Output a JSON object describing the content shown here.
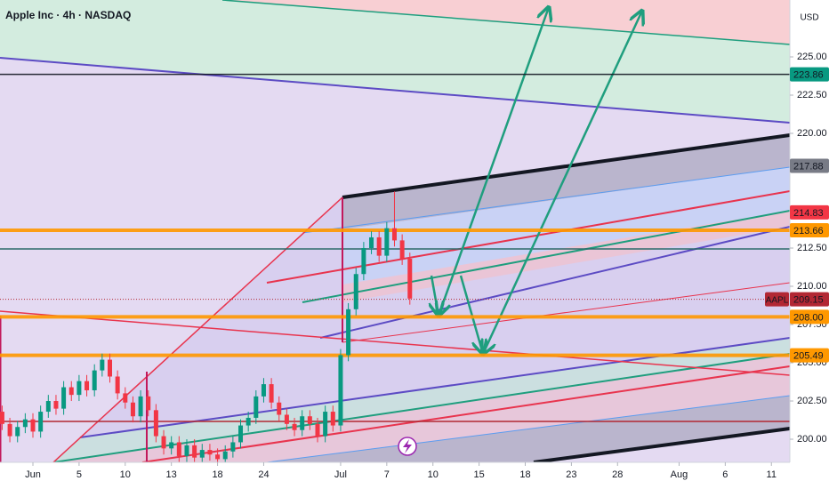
{
  "chart_data": {
    "type": "candlestick",
    "title": "Apple Inc · 4h · NASDAQ",
    "currency": "USD",
    "symbol_tag": "AAPL",
    "up_color": "#089981",
    "down_color": "#f23645",
    "xlim": [
      -2.14,
      49.2
    ],
    "ylim": [
      198.49,
      228.72
    ],
    "xticks": [
      {
        "value": 0,
        "label": "Jun"
      },
      {
        "value": 3,
        "label": "5"
      },
      {
        "value": 6,
        "label": "10"
      },
      {
        "value": 9,
        "label": "13"
      },
      {
        "value": 12,
        "label": "18"
      },
      {
        "value": 15,
        "label": "24"
      },
      {
        "value": 20,
        "label": "Jul"
      },
      {
        "value": 23,
        "label": "7"
      },
      {
        "value": 26,
        "label": "10"
      },
      {
        "value": 29,
        "label": "15"
      },
      {
        "value": 32,
        "label": "18"
      },
      {
        "value": 35,
        "label": "23"
      },
      {
        "value": 38,
        "label": "28"
      },
      {
        "value": 42,
        "label": "Aug"
      },
      {
        "value": 45,
        "label": "6"
      },
      {
        "value": 48,
        "label": "11"
      }
    ],
    "yticks": [
      {
        "value": 225,
        "label": "225.00"
      },
      {
        "value": 222.5,
        "label": "222.50"
      },
      {
        "value": 220,
        "label": "220.00"
      },
      {
        "value": 212.5,
        "label": "212.50"
      },
      {
        "value": 210,
        "label": "210.00"
      },
      {
        "value": 207.5,
        "label": "207.50"
      },
      {
        "value": 205,
        "label": "205.00"
      },
      {
        "value": 202.5,
        "label": "202.50"
      },
      {
        "value": 200,
        "label": "200.00"
      }
    ],
    "x": [
      -2,
      -1.5,
      -1,
      -0.5,
      0,
      0.5,
      1,
      1.5,
      2,
      2.5,
      3,
      3.5,
      4,
      4.5,
      5,
      5.5,
      6,
      6.5,
      7,
      7.5,
      8,
      8.5,
      9,
      9.5,
      10,
      10.5,
      11,
      11.5,
      12,
      12.5,
      13,
      13.5,
      14,
      14.5,
      15,
      15.5,
      16,
      16.5,
      17,
      17.5,
      18,
      18.5,
      19,
      19.5,
      20,
      20.5,
      21,
      21.5,
      22,
      22.5,
      23,
      23.5,
      24,
      24.5
    ],
    "open": [
      201.8,
      201.0,
      200.2,
      200.8,
      201.3,
      200.5,
      201.8,
      202.5,
      202.0,
      203.4,
      202.9,
      203.8,
      203.2,
      204.5,
      205.2,
      204.1,
      203.0,
      202.4,
      201.5,
      202.8,
      201.9,
      200.2,
      199.4,
      199.8,
      198.9,
      199.6,
      198.8,
      199.3,
      199.0,
      198.7,
      199.2,
      199.8,
      200.9,
      201.4,
      202.8,
      203.6,
      202.4,
      201.6,
      201.0,
      200.6,
      201.5,
      201.0,
      200.2,
      201.8,
      200.9,
      205.5,
      208.5,
      210.8,
      212.5,
      213.2,
      212.0,
      213.8,
      213.0,
      211.8
    ],
    "high": [
      202.2,
      201.4,
      201.2,
      201.7,
      201.7,
      202.2,
      202.9,
      202.9,
      203.8,
      203.8,
      204.2,
      204.2,
      204.9,
      205.6,
      205.6,
      204.5,
      203.4,
      202.8,
      203.2,
      203.2,
      202.3,
      200.6,
      200.2,
      200.2,
      200.0,
      200.0,
      199.7,
      199.7,
      199.4,
      199.6,
      200.2,
      201.3,
      201.8,
      203.2,
      204.0,
      204.0,
      202.8,
      202.0,
      201.4,
      201.9,
      201.9,
      201.4,
      202.2,
      202.2,
      205.9,
      208.9,
      211.2,
      212.9,
      213.6,
      213.6,
      214.2,
      216.2,
      213.4,
      212.2
    ],
    "low": [
      200.6,
      199.8,
      199.8,
      200.4,
      200.1,
      200.1,
      201.4,
      201.6,
      201.6,
      202.5,
      202.5,
      202.8,
      202.8,
      204.1,
      203.7,
      202.6,
      202.0,
      201.1,
      201.1,
      201.5,
      199.8,
      199.0,
      199.0,
      198.5,
      198.5,
      198.5,
      198.5,
      198.6,
      198.5,
      198.5,
      198.8,
      199.4,
      200.5,
      201.0,
      202.4,
      202.0,
      201.2,
      200.6,
      200.2,
      200.2,
      200.6,
      199.8,
      199.8,
      200.5,
      200.5,
      205.1,
      208.1,
      210.4,
      212.1,
      211.6,
      211.6,
      212.6,
      211.4,
      208.8
    ],
    "close": [
      201.0,
      200.2,
      200.8,
      201.3,
      200.5,
      201.8,
      202.5,
      202.0,
      203.4,
      202.9,
      203.8,
      203.2,
      204.5,
      205.2,
      204.1,
      203.0,
      202.4,
      201.5,
      202.8,
      201.9,
      200.2,
      199.4,
      199.8,
      198.9,
      199.6,
      198.8,
      199.3,
      199.0,
      198.7,
      199.2,
      199.8,
      200.9,
      201.4,
      202.8,
      203.6,
      202.4,
      201.6,
      201.0,
      200.6,
      201.5,
      201.0,
      200.2,
      201.8,
      200.9,
      205.5,
      208.5,
      210.8,
      212.5,
      213.2,
      212.0,
      213.8,
      213.0,
      211.8,
      209.2
    ],
    "price_tags": {
      "values": [
        223.86,
        217.88,
        214.83,
        213.66,
        209.15,
        208.0,
        205.49
      ],
      "value_labels": [
        "223.86",
        "217.88",
        "214.83",
        "213.66",
        "209.15",
        "208.00",
        "205.49"
      ],
      "colors": [
        "#089981",
        "#787b86",
        "#f23645",
        "#ff9800",
        "#b22833",
        "#ff9800",
        "#ff9800"
      ],
      "line_colors": [
        "#131722",
        null,
        null,
        "#ff9800",
        "#b22833",
        "#ff9800",
        "#ff9800"
      ]
    }
  }
}
